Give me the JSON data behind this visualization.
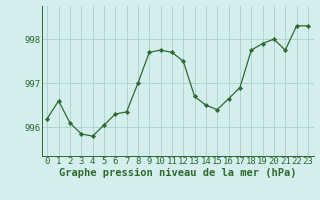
{
  "x": [
    0,
    1,
    2,
    3,
    4,
    5,
    6,
    7,
    8,
    9,
    10,
    11,
    12,
    13,
    14,
    15,
    16,
    17,
    18,
    19,
    20,
    21,
    22,
    23
  ],
  "y": [
    996.2,
    996.6,
    996.1,
    995.85,
    995.8,
    996.05,
    996.3,
    996.35,
    997.0,
    997.7,
    997.75,
    997.7,
    997.5,
    996.7,
    996.5,
    996.4,
    996.65,
    996.9,
    997.75,
    997.9,
    998.0,
    997.75,
    998.3,
    998.3
  ],
  "line_color": "#2d6a2d",
  "marker": "D",
  "marker_size": 2.2,
  "bg_color": "#d4eeee",
  "grid_color": "#aacece",
  "ytick_labels": [
    "996",
    "997",
    "998"
  ],
  "ytick_values": [
    996,
    997,
    998
  ],
  "xlabel": "Graphe pression niveau de la mer (hPa)",
  "xlabel_fontsize": 7.5,
  "tick_fontsize": 6.5,
  "ylim": [
    995.35,
    998.75
  ],
  "xlim": [
    -0.5,
    23.5
  ]
}
